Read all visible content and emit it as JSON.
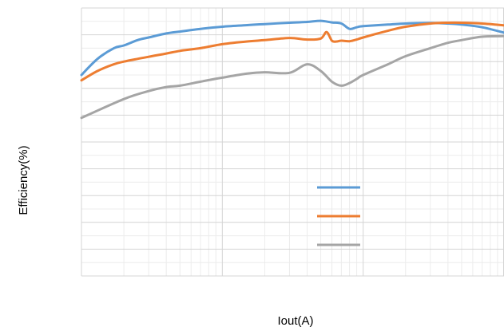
{
  "chart_data": {
    "type": "line",
    "title": "",
    "xlabel": "Iout(A)",
    "ylabel": "Efficiency(%)",
    "x_scale": "log",
    "xlim": [
      0.01,
      10
    ],
    "ylim": [
      0,
      100
    ],
    "grid": true,
    "legend": "bottom-center",
    "series": [
      {
        "color": "#5B9BD5",
        "x": [
          0.01,
          0.013,
          0.017,
          0.02,
          0.025,
          0.03,
          0.04,
          0.05,
          0.07,
          0.1,
          0.15,
          0.2,
          0.3,
          0.4,
          0.5,
          0.6,
          0.7,
          0.8,
          0.9,
          1.0,
          1.5,
          2,
          3,
          4,
          5,
          7,
          10
        ],
        "y": [
          75,
          81,
          85,
          86,
          88,
          89,
          90.5,
          91.2,
          92.2,
          93,
          93.6,
          94,
          94.5,
          94.8,
          95.2,
          94.6,
          94.2,
          92.2,
          92.8,
          93.2,
          93.8,
          94.2,
          94.4,
          94.2,
          93.8,
          92.8,
          90.8
        ]
      },
      {
        "color": "#ED7D31",
        "x": [
          0.01,
          0.013,
          0.017,
          0.02,
          0.025,
          0.03,
          0.04,
          0.05,
          0.07,
          0.1,
          0.15,
          0.2,
          0.3,
          0.4,
          0.5,
          0.55,
          0.6,
          0.65,
          0.7,
          0.8,
          0.9,
          1.0,
          1.5,
          2,
          3,
          4,
          5,
          7,
          10
        ],
        "y": [
          73,
          76.5,
          79,
          80,
          81,
          81.8,
          83,
          84,
          85,
          86.5,
          87.5,
          88,
          88.8,
          88.2,
          88.6,
          91,
          87.8,
          87.5,
          87.8,
          87.6,
          88.2,
          89,
          91.5,
          93,
          94.2,
          94.5,
          94.5,
          94.2,
          93.5
        ]
      },
      {
        "color": "#A5A5A5",
        "x": [
          0.01,
          0.02,
          0.03,
          0.04,
          0.05,
          0.07,
          0.1,
          0.15,
          0.2,
          0.3,
          0.4,
          0.5,
          0.6,
          0.7,
          0.8,
          0.9,
          1.0,
          1.5,
          2,
          3,
          4,
          5,
          7,
          10
        ],
        "y": [
          59,
          66,
          69,
          70.5,
          71,
          72.5,
          74,
          75.5,
          76,
          75.8,
          79,
          76.5,
          72.5,
          71,
          72,
          73.5,
          75,
          79,
          82,
          85,
          87,
          88,
          89.3,
          89.5
        ]
      }
    ]
  }
}
